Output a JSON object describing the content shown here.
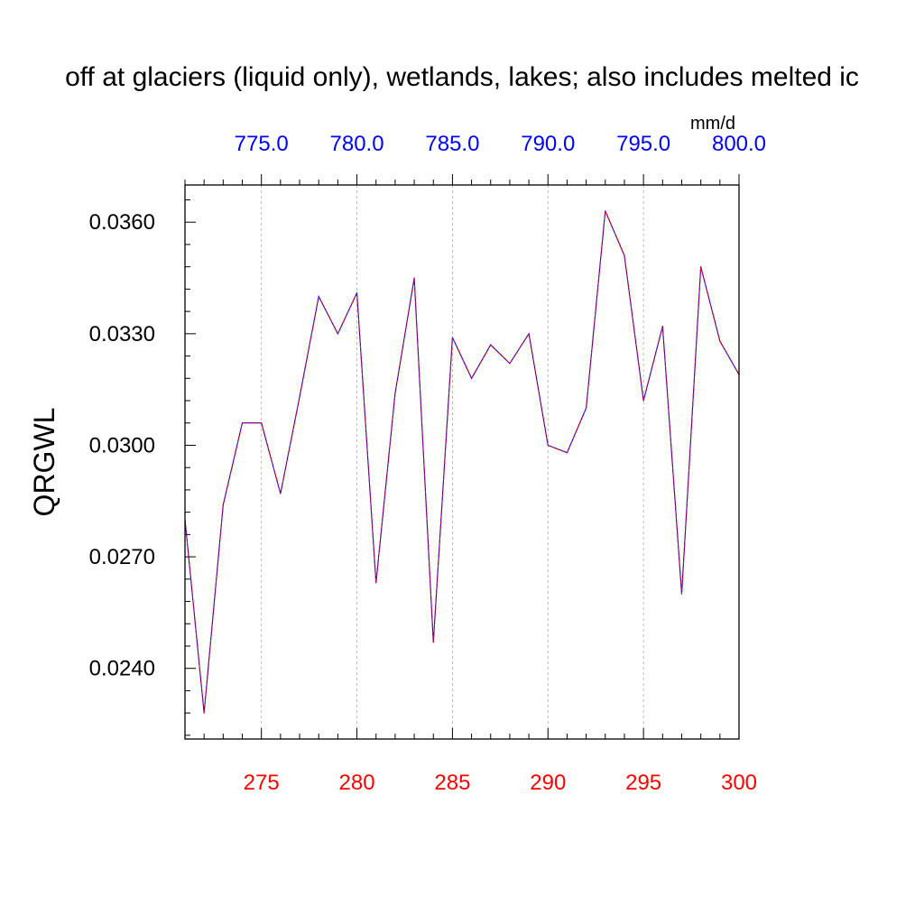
{
  "chart_data": {
    "type": "line",
    "title": "off at glaciers (liquid only), wetlands, lakes; also includes melted ic",
    "ylabel": "QRGWL",
    "top_axis_units": "mm/d",
    "xlim": [
      271,
      300
    ],
    "ylim": [
      0.0221,
      0.037
    ],
    "bottom_ticks": [
      275,
      280,
      285,
      290,
      295,
      300
    ],
    "bottom_tick_labels": [
      "275",
      "280",
      "285",
      "290",
      "295",
      "300"
    ],
    "top_ticks": [
      775,
      780,
      785,
      790,
      795,
      800
    ],
    "top_tick_labels": [
      "775.0",
      "780.0",
      "785.0",
      "790.0",
      "795.0",
      "800.0"
    ],
    "top_axis_offset": 500,
    "y_ticks": [
      0.024,
      0.027,
      0.03,
      0.033,
      0.036
    ],
    "y_tick_labels": [
      "0.0240",
      "0.0270",
      "0.0300",
      "0.0330",
      "0.0360"
    ],
    "grid": "vertical dashed at major x ticks",
    "colors": {
      "bottom_axis": "#ff0000",
      "top_axis": "#0000ff",
      "line_a": "#0000ff",
      "line_b": "#ff0000"
    },
    "x": [
      271,
      272,
      273,
      274,
      275,
      276,
      277,
      278,
      279,
      280,
      281,
      282,
      283,
      284,
      285,
      286,
      287,
      288,
      289,
      290,
      291,
      292,
      293,
      294,
      295,
      296,
      297,
      298,
      299,
      300
    ],
    "series": [
      {
        "values": [
          0.028,
          0.0228,
          0.0284,
          0.0306,
          0.0306,
          0.0287,
          0.0313,
          0.034,
          0.033,
          0.0341,
          0.0263,
          0.0314,
          0.0345,
          0.0247,
          0.0329,
          0.0318,
          0.0327,
          0.0322,
          0.033,
          0.03,
          0.0298,
          0.031,
          0.0363,
          0.0351,
          0.0312,
          0.0332,
          0.026,
          0.0348,
          0.0328,
          0.0319
        ]
      }
    ]
  }
}
